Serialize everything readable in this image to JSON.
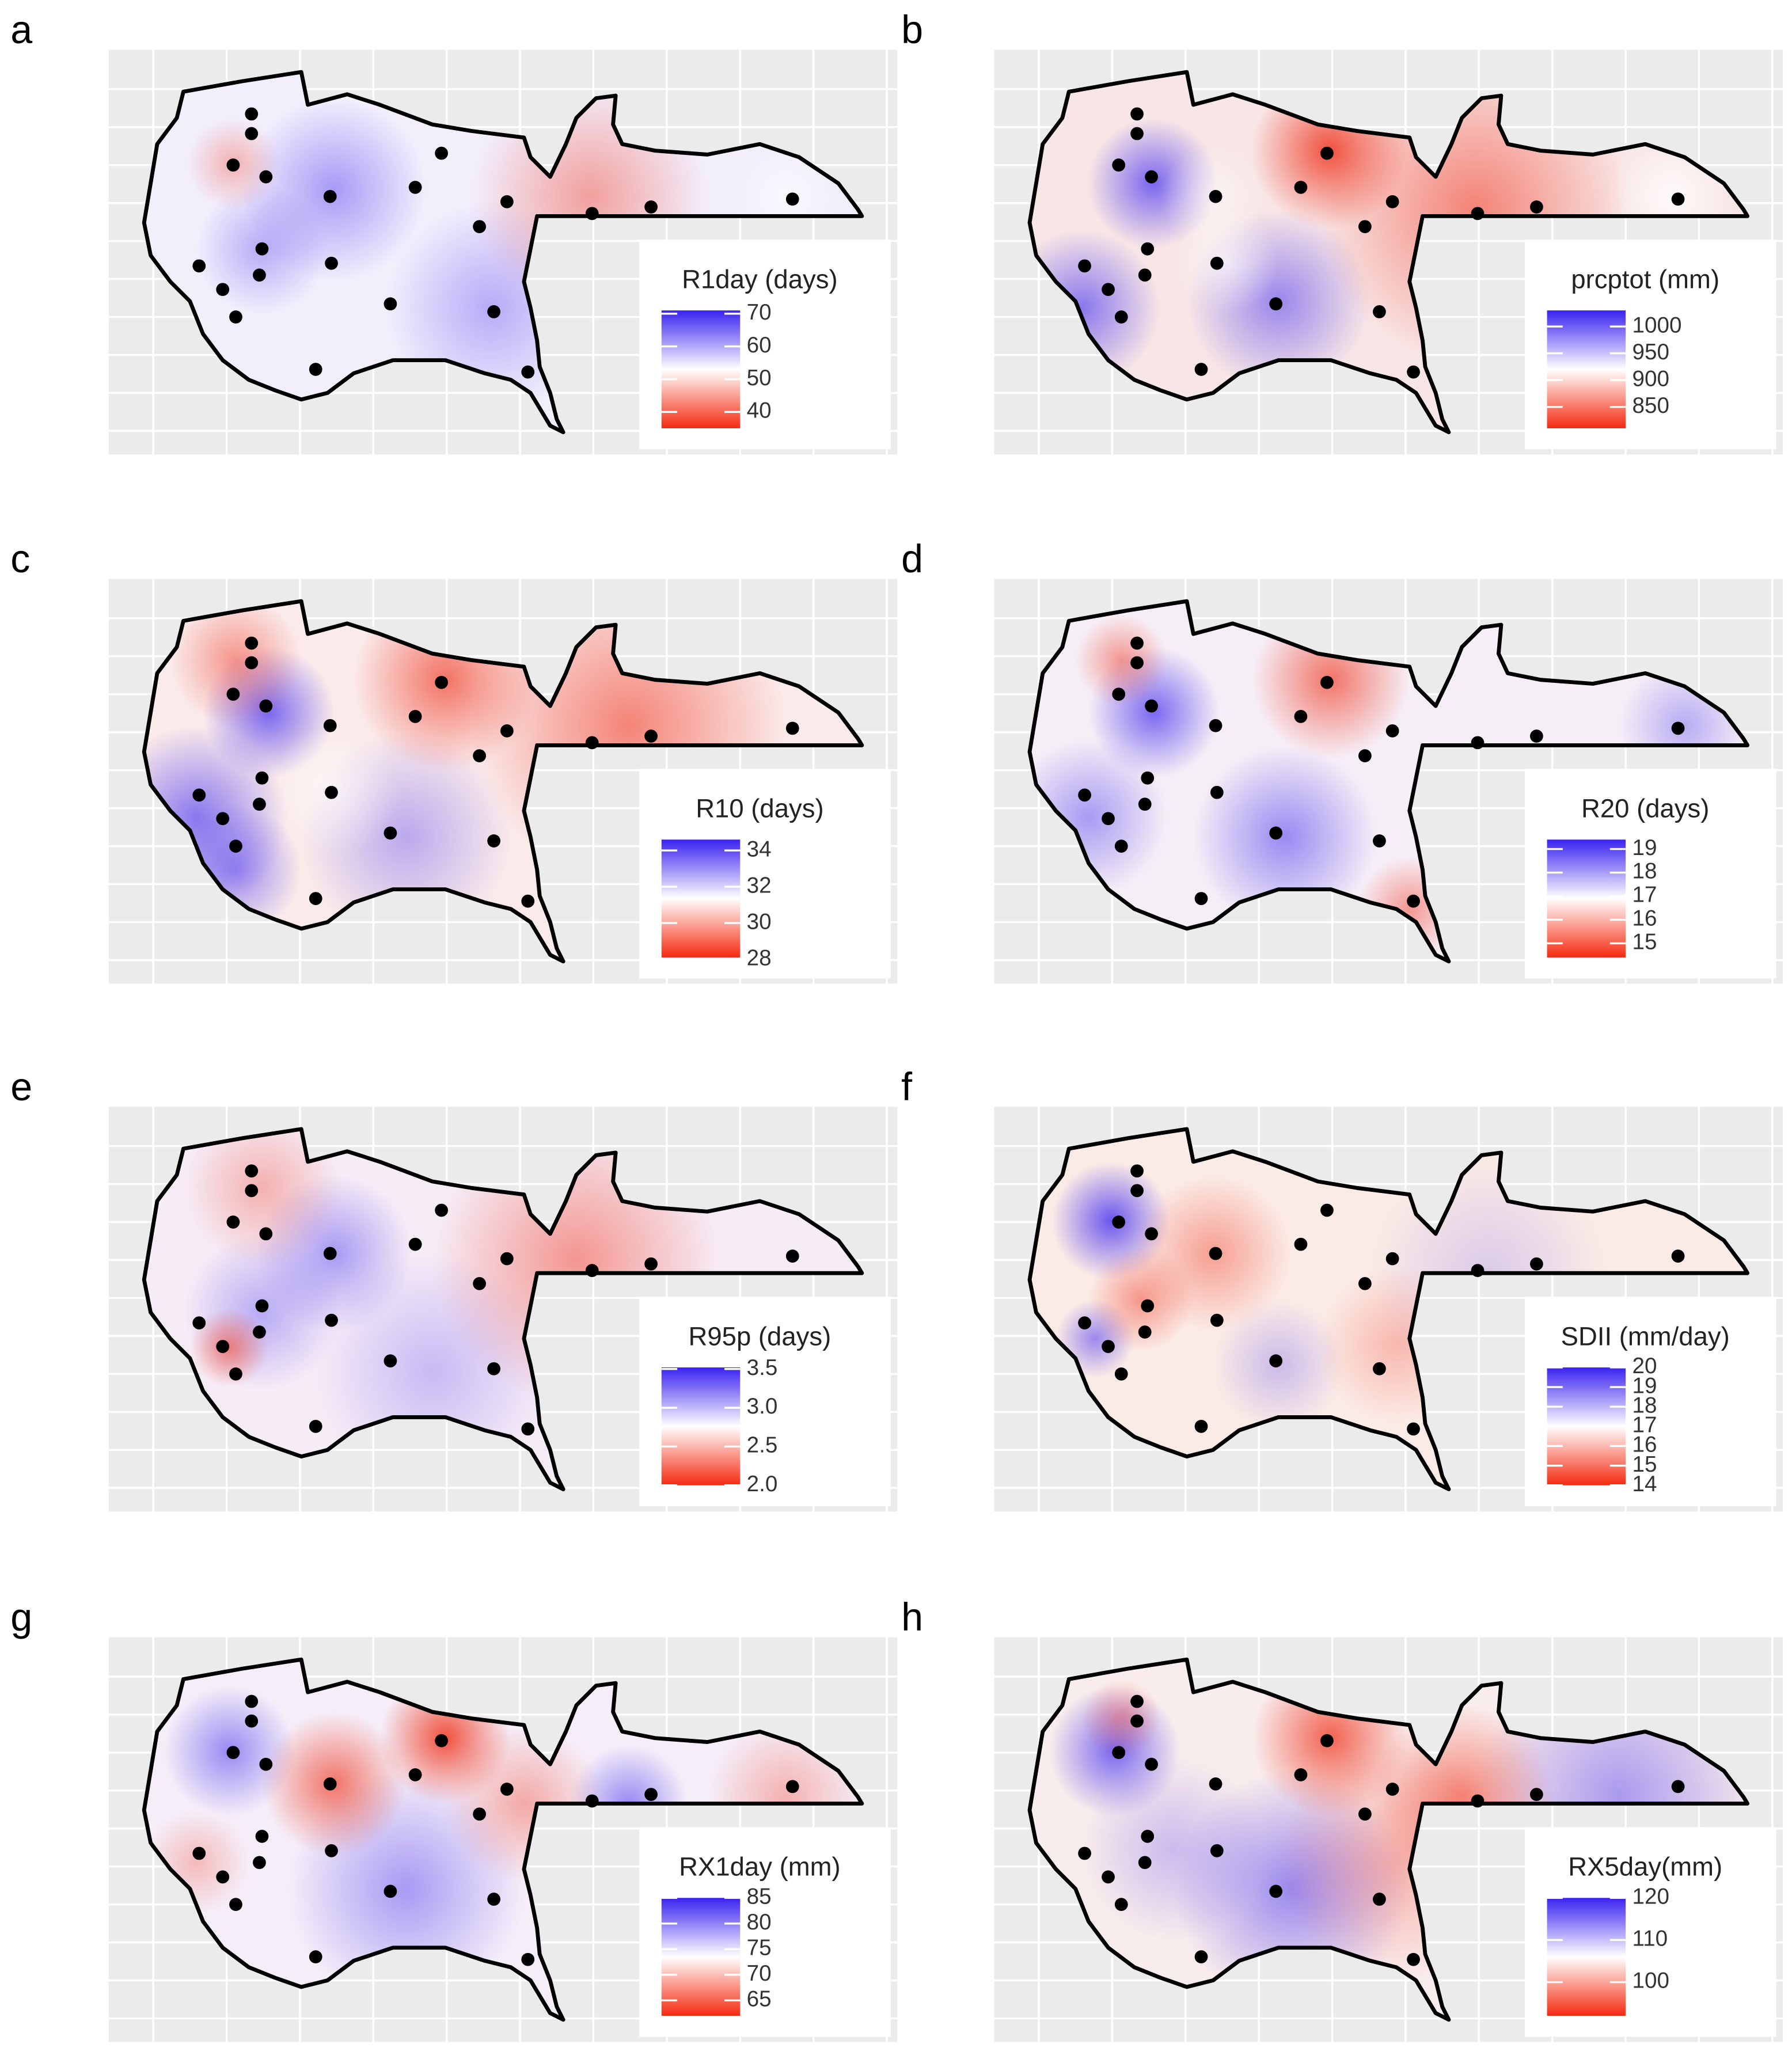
{
  "panels": [
    {
      "label": "a",
      "legend": {
        "title": "R1day (days)",
        "ticks": [
          70,
          60,
          50,
          40
        ],
        "lim": [
          35,
          71
        ]
      }
    },
    {
      "label": "b",
      "legend": {
        "title": "prcptot (mm)",
        "ticks": [
          1000,
          950,
          900,
          850
        ],
        "lim": [
          810,
          1030
        ]
      }
    },
    {
      "label": "c",
      "legend": {
        "title": "R10 (days)",
        "ticks": [
          34,
          32,
          30,
          28
        ],
        "lim": [
          28.1,
          34.6
        ]
      }
    },
    {
      "label": "d",
      "legend": {
        "title": "R20 (days)",
        "ticks": [
          19,
          18,
          17,
          16,
          15
        ],
        "lim": [
          14.4,
          19.4
        ]
      }
    },
    {
      "label": "e",
      "legend": {
        "title": "R95p (days)",
        "ticks": [
          3.5,
          {
            "value": 3,
            "label": "3.0"
          },
          2.5,
          {
            "value": 2,
            "label": "2.0"
          }
        ],
        "lim": [
          2,
          3.52
        ]
      }
    },
    {
      "label": "f",
      "legend": {
        "title": "SDII (mm/day)",
        "ticks": [
          20,
          19,
          18,
          17,
          16,
          15,
          14
        ],
        "lim": [
          14,
          20
        ]
      }
    },
    {
      "label": "g",
      "legend": {
        "title": "RX1day (mm)",
        "ticks": [
          85,
          80,
          75,
          70,
          65
        ],
        "lim": [
          62,
          85
        ]
      }
    },
    {
      "label": "h",
      "legend": {
        "title": "RX5day(mm)",
        "ticks": [
          120,
          110,
          100
        ],
        "lim": [
          92,
          120
        ]
      }
    }
  ]
}
